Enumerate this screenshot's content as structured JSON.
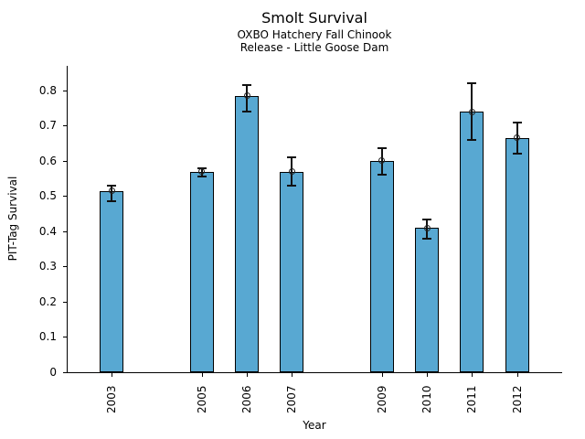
{
  "figure": {
    "title": "Smolt Survival",
    "subtitle_line1": "OXBO Hatchery Fall Chinook",
    "subtitle_line2": "Release - Little Goose Dam"
  },
  "chart_data": {
    "type": "bar",
    "title": "Smolt Survival",
    "subtitles": [
      "OXBO Hatchery Fall Chinook",
      "Release - Little Goose Dam"
    ],
    "xlabel": "Year",
    "ylabel": "PIT-Tag Survival",
    "categories": [
      "2003",
      "2005",
      "2006",
      "2007",
      "2009",
      "2010",
      "2011",
      "2012"
    ],
    "x_numeric": [
      2003,
      2005,
      2006,
      2007,
      2009,
      2010,
      2011,
      2012
    ],
    "values": [
      0.515,
      0.57,
      0.785,
      0.57,
      0.6,
      0.41,
      0.74,
      0.665
    ],
    "error_low": [
      0.485,
      0.555,
      0.74,
      0.53,
      0.56,
      0.38,
      0.66,
      0.62
    ],
    "error_high": [
      0.53,
      0.58,
      0.815,
      0.61,
      0.635,
      0.435,
      0.82,
      0.71
    ],
    "marker": "open-circle",
    "xlim": [
      2002,
      2013
    ],
    "ylim": [
      0,
      0.87
    ],
    "yticks": [
      0,
      0.1,
      0.2,
      0.3,
      0.4,
      0.5,
      0.6,
      0.7,
      0.8
    ],
    "ytick_labels": [
      "0",
      "0.1",
      "0.2",
      "0.3",
      "0.4",
      "0.5",
      "0.6",
      "0.7",
      "0.8"
    ],
    "bar_color": "#58a8d2",
    "bar_edge_color": "#000000",
    "errorbar_color": "#111111",
    "grid": false,
    "legend": false
  }
}
